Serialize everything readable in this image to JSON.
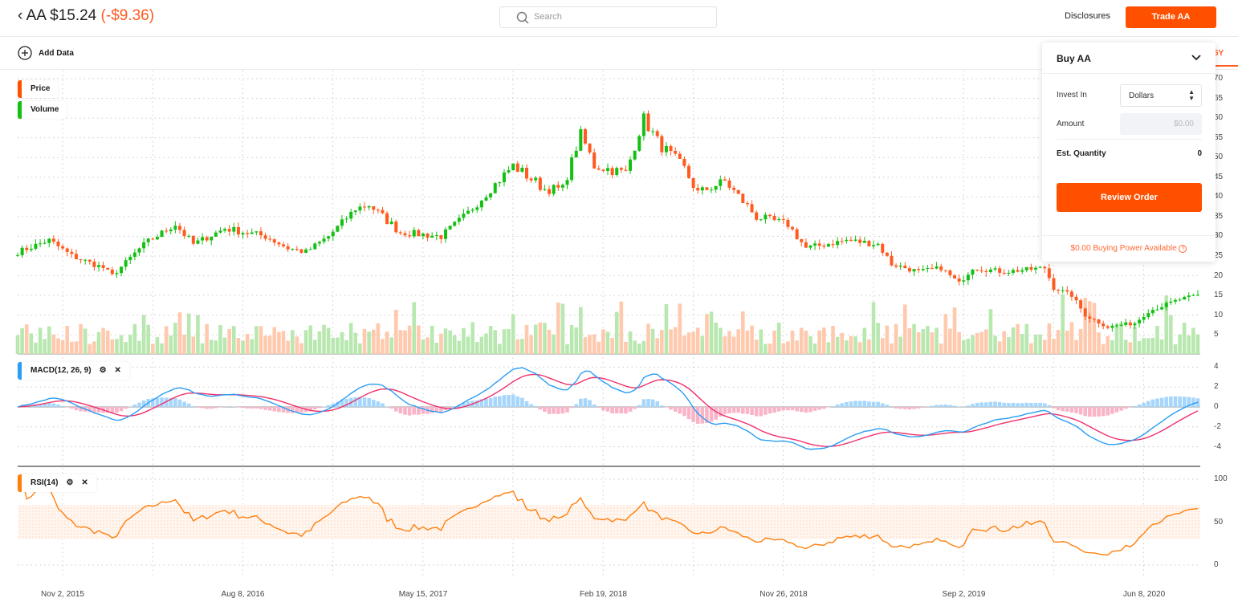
{
  "header": {
    "back_icon": "chevron-left-icon",
    "symbol_price": "AA $15.24",
    "change": "(-$9.36)",
    "search_placeholder": "Search",
    "disclosures": "Disclosures",
    "trade_button": "Trade AA"
  },
  "toolbar": {
    "add_data": "Add Data",
    "range_tab": "5Y"
  },
  "legend": {
    "price": "Price",
    "volume": "Volume",
    "macd": "MACD(12, 26, 9)",
    "rsi": "RSI(14)"
  },
  "colors": {
    "accent": "#ff5000",
    "up": "#14c014",
    "down": "#ff5a1f",
    "macd": "#2a9df4",
    "signal": "#f0306a",
    "rsi": "#ff7f0e"
  },
  "buy_panel": {
    "title": "Buy AA",
    "invest_in_label": "Invest In",
    "invest_in_value": "Dollars",
    "amount_label": "Amount",
    "amount_placeholder": "$0.00",
    "est_quantity_label": "Est. Quantity",
    "est_quantity_value": "0",
    "review_button": "Review Order",
    "buying_power": "$0.00 Buying Power Available"
  },
  "chart_data": {
    "type": "candlestick",
    "price_axis": {
      "ticks": [
        "70",
        "65",
        "60",
        "55",
        "50",
        "45",
        "40",
        "35",
        "30",
        "25",
        "20",
        "15",
        "10",
        "5"
      ],
      "range": [
        5,
        70
      ]
    },
    "macd_axis": {
      "ticks": [
        "4",
        "2",
        "0",
        "-2",
        "-4"
      ],
      "range": [
        -4,
        4
      ]
    },
    "rsi_axis": {
      "ticks": [
        "100",
        "50",
        "0"
      ],
      "range": [
        0,
        100
      ],
      "band": [
        30,
        70
      ]
    },
    "x_ticks": [
      "Nov 2, 2015",
      "Aug 8, 2016",
      "May 15, 2017",
      "Feb 19, 2018",
      "Nov 26, 2018",
      "Sep 2, 2019",
      "Jun 8, 2020"
    ],
    "weeks": 263,
    "price_anchors": [
      [
        0,
        26
      ],
      [
        7,
        29
      ],
      [
        12,
        25
      ],
      [
        19,
        22
      ],
      [
        21,
        20
      ],
      [
        28,
        28
      ],
      [
        35,
        33
      ],
      [
        39,
        28
      ],
      [
        46,
        32
      ],
      [
        55,
        30
      ],
      [
        60,
        27
      ],
      [
        64,
        26
      ],
      [
        69,
        30
      ],
      [
        75,
        37
      ],
      [
        78,
        38
      ],
      [
        85,
        31
      ],
      [
        94,
        30
      ],
      [
        100,
        36
      ],
      [
        105,
        42
      ],
      [
        110,
        48
      ],
      [
        117,
        42
      ],
      [
        121,
        42
      ],
      [
        125,
        56
      ],
      [
        128,
        48
      ],
      [
        135,
        46
      ],
      [
        139,
        60
      ],
      [
        142,
        54
      ],
      [
        148,
        47
      ],
      [
        151,
        41
      ],
      [
        157,
        44
      ],
      [
        164,
        35
      ],
      [
        171,
        33
      ],
      [
        175,
        27
      ],
      [
        184,
        29
      ],
      [
        191,
        28
      ],
      [
        194,
        23
      ],
      [
        200,
        21
      ],
      [
        205,
        22
      ],
      [
        209,
        18
      ],
      [
        212,
        22
      ],
      [
        219,
        21
      ],
      [
        228,
        22
      ],
      [
        230,
        17
      ],
      [
        234,
        15
      ],
      [
        237,
        10
      ],
      [
        242,
        7
      ],
      [
        248,
        8
      ],
      [
        251,
        11
      ],
      [
        258,
        14
      ],
      [
        262,
        15
      ]
    ]
  }
}
